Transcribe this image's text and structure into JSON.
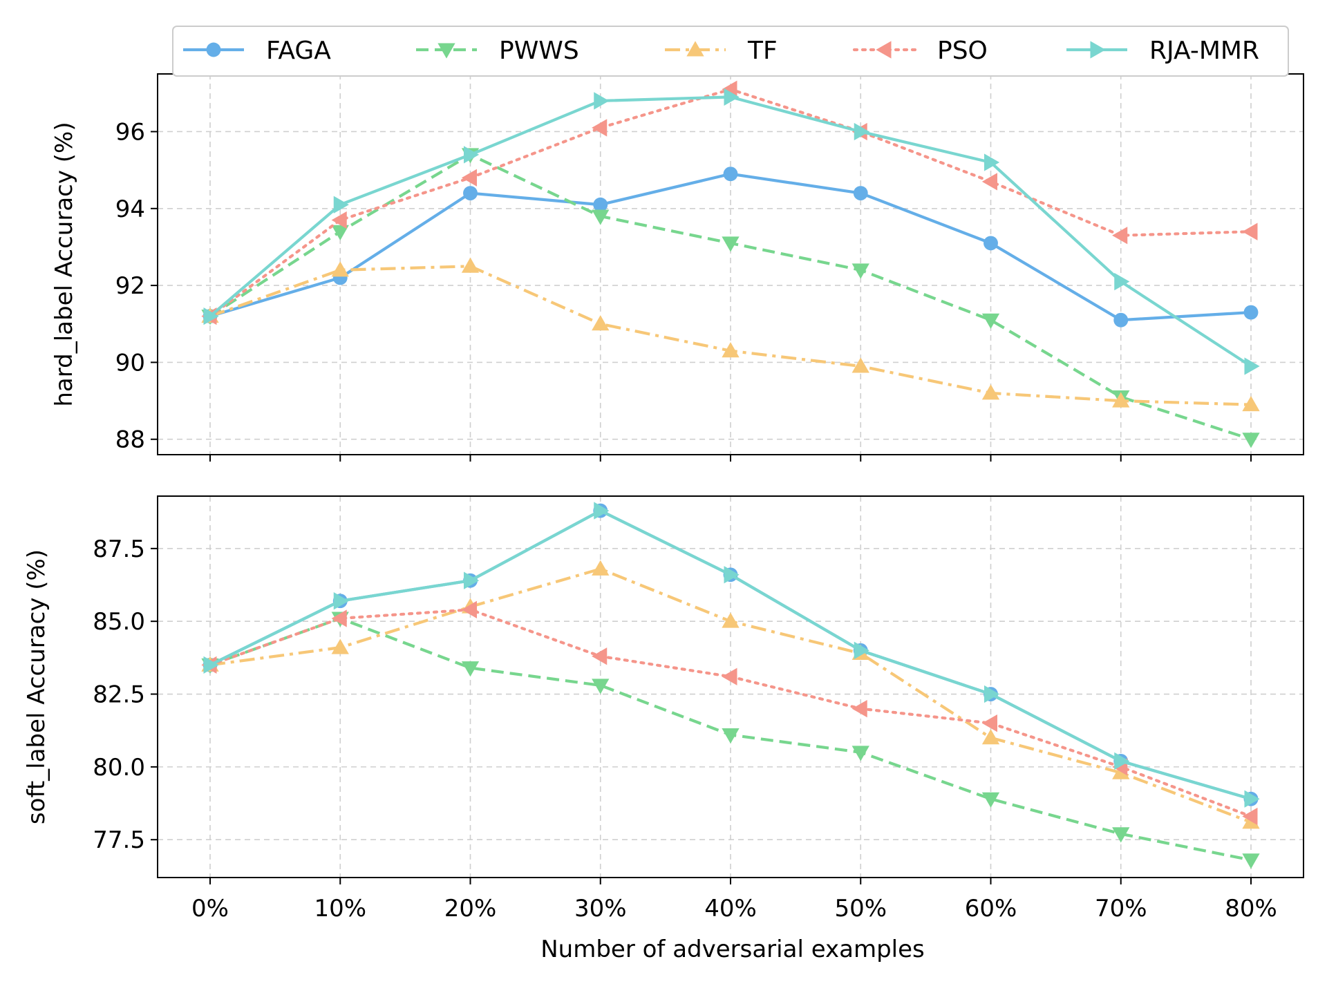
{
  "chart_data": {
    "type": "line",
    "categories": [
      "0%",
      "10%",
      "20%",
      "30%",
      "40%",
      "50%",
      "60%",
      "70%",
      "80%"
    ],
    "xlabel": "Number of adversarial examples",
    "grid": true,
    "legend_placement": "top-center",
    "series_styles": [
      {
        "name": "FAGA",
        "color": "#64aee8",
        "dash": "solid",
        "marker": "circle"
      },
      {
        "name": "PWWS",
        "color": "#77d68e",
        "dash": "dashed",
        "marker": "triangle-down"
      },
      {
        "name": "TF",
        "color": "#f7c777",
        "dash": "dashdot",
        "marker": "triangle-up"
      },
      {
        "name": "PSO",
        "color": "#f5958a",
        "dash": "dotted",
        "marker": "triangle-left"
      },
      {
        "name": "RJA-MMR",
        "color": "#79d6d0",
        "dash": "solid",
        "marker": "triangle-right"
      }
    ],
    "panels": [
      {
        "ylabel": "hard_label Accuracy (%)",
        "ylim": [
          87.6,
          97.5
        ],
        "yticks": [
          88,
          90,
          92,
          94,
          96
        ],
        "ytick_labels": [
          "88",
          "90",
          "92",
          "94",
          "96"
        ],
        "series": [
          {
            "name": "FAGA",
            "values": [
              91.2,
              92.2,
              94.4,
              94.1,
              94.9,
              94.4,
              93.1,
              91.1,
              91.3
            ]
          },
          {
            "name": "PWWS",
            "values": [
              91.2,
              93.4,
              95.4,
              93.8,
              93.1,
              92.4,
              91.1,
              89.1,
              88.0
            ]
          },
          {
            "name": "TF",
            "values": [
              91.2,
              92.4,
              92.5,
              91.0,
              90.3,
              89.9,
              89.2,
              89.0,
              88.9
            ]
          },
          {
            "name": "PSO",
            "values": [
              91.2,
              93.7,
              94.8,
              96.1,
              97.1,
              96.0,
              94.7,
              93.3,
              93.4
            ]
          },
          {
            "name": "RJA-MMR",
            "values": [
              91.2,
              94.1,
              95.4,
              96.8,
              96.9,
              96.0,
              95.2,
              92.1,
              89.9
            ]
          }
        ]
      },
      {
        "ylabel": "soft_label Accuracy (%)",
        "ylim": [
          76.2,
          89.3
        ],
        "yticks": [
          77.5,
          80.0,
          82.5,
          85.0,
          87.5
        ],
        "ytick_labels": [
          "77.5",
          "80.0",
          "82.5",
          "85.0",
          "87.5"
        ],
        "series": [
          {
            "name": "FAGA",
            "values": [
              83.5,
              85.7,
              86.4,
              88.8,
              86.6,
              84.0,
              82.5,
              80.2,
              78.9
            ]
          },
          {
            "name": "PWWS",
            "values": [
              83.5,
              85.1,
              83.4,
              82.8,
              81.1,
              80.5,
              78.9,
              77.7,
              76.8
            ]
          },
          {
            "name": "TF",
            "values": [
              83.5,
              84.1,
              85.5,
              86.8,
              85.0,
              83.9,
              81.0,
              79.8,
              78.1
            ]
          },
          {
            "name": "PSO",
            "values": [
              83.5,
              85.1,
              85.4,
              83.8,
              83.1,
              82.0,
              81.5,
              80.0,
              78.3
            ]
          },
          {
            "name": "RJA-MMR",
            "values": [
              83.5,
              85.7,
              86.4,
              88.8,
              86.6,
              84.0,
              82.5,
              80.2,
              78.9
            ]
          }
        ]
      }
    ]
  }
}
